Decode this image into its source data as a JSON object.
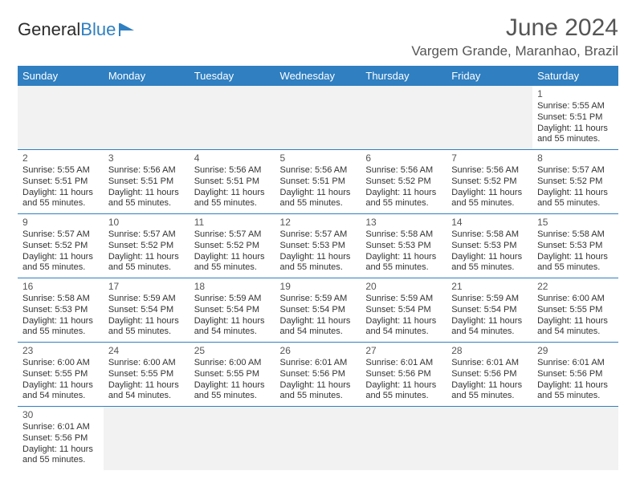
{
  "brand": {
    "part1": "General",
    "part2": "Blue"
  },
  "title": "June 2024",
  "location": "Vargem Grande, Maranhao, Brazil",
  "colors": {
    "header_bg": "#2f7fc1",
    "text": "#333333",
    "muted_bg": "#f2f2f2"
  },
  "day_headers": [
    "Sunday",
    "Monday",
    "Tuesday",
    "Wednesday",
    "Thursday",
    "Friday",
    "Saturday"
  ],
  "weeks": [
    [
      null,
      null,
      null,
      null,
      null,
      null,
      {
        "n": "1",
        "sunrise": "Sunrise: 5:55 AM",
        "sunset": "Sunset: 5:51 PM",
        "d1": "Daylight: 11 hours",
        "d2": "and 55 minutes."
      }
    ],
    [
      {
        "n": "2",
        "sunrise": "Sunrise: 5:55 AM",
        "sunset": "Sunset: 5:51 PM",
        "d1": "Daylight: 11 hours",
        "d2": "and 55 minutes."
      },
      {
        "n": "3",
        "sunrise": "Sunrise: 5:56 AM",
        "sunset": "Sunset: 5:51 PM",
        "d1": "Daylight: 11 hours",
        "d2": "and 55 minutes."
      },
      {
        "n": "4",
        "sunrise": "Sunrise: 5:56 AM",
        "sunset": "Sunset: 5:51 PM",
        "d1": "Daylight: 11 hours",
        "d2": "and 55 minutes."
      },
      {
        "n": "5",
        "sunrise": "Sunrise: 5:56 AM",
        "sunset": "Sunset: 5:51 PM",
        "d1": "Daylight: 11 hours",
        "d2": "and 55 minutes."
      },
      {
        "n": "6",
        "sunrise": "Sunrise: 5:56 AM",
        "sunset": "Sunset: 5:52 PM",
        "d1": "Daylight: 11 hours",
        "d2": "and 55 minutes."
      },
      {
        "n": "7",
        "sunrise": "Sunrise: 5:56 AM",
        "sunset": "Sunset: 5:52 PM",
        "d1": "Daylight: 11 hours",
        "d2": "and 55 minutes."
      },
      {
        "n": "8",
        "sunrise": "Sunrise: 5:57 AM",
        "sunset": "Sunset: 5:52 PM",
        "d1": "Daylight: 11 hours",
        "d2": "and 55 minutes."
      }
    ],
    [
      {
        "n": "9",
        "sunrise": "Sunrise: 5:57 AM",
        "sunset": "Sunset: 5:52 PM",
        "d1": "Daylight: 11 hours",
        "d2": "and 55 minutes."
      },
      {
        "n": "10",
        "sunrise": "Sunrise: 5:57 AM",
        "sunset": "Sunset: 5:52 PM",
        "d1": "Daylight: 11 hours",
        "d2": "and 55 minutes."
      },
      {
        "n": "11",
        "sunrise": "Sunrise: 5:57 AM",
        "sunset": "Sunset: 5:52 PM",
        "d1": "Daylight: 11 hours",
        "d2": "and 55 minutes."
      },
      {
        "n": "12",
        "sunrise": "Sunrise: 5:57 AM",
        "sunset": "Sunset: 5:53 PM",
        "d1": "Daylight: 11 hours",
        "d2": "and 55 minutes."
      },
      {
        "n": "13",
        "sunrise": "Sunrise: 5:58 AM",
        "sunset": "Sunset: 5:53 PM",
        "d1": "Daylight: 11 hours",
        "d2": "and 55 minutes."
      },
      {
        "n": "14",
        "sunrise": "Sunrise: 5:58 AM",
        "sunset": "Sunset: 5:53 PM",
        "d1": "Daylight: 11 hours",
        "d2": "and 55 minutes."
      },
      {
        "n": "15",
        "sunrise": "Sunrise: 5:58 AM",
        "sunset": "Sunset: 5:53 PM",
        "d1": "Daylight: 11 hours",
        "d2": "and 55 minutes."
      }
    ],
    [
      {
        "n": "16",
        "sunrise": "Sunrise: 5:58 AM",
        "sunset": "Sunset: 5:53 PM",
        "d1": "Daylight: 11 hours",
        "d2": "and 55 minutes."
      },
      {
        "n": "17",
        "sunrise": "Sunrise: 5:59 AM",
        "sunset": "Sunset: 5:54 PM",
        "d1": "Daylight: 11 hours",
        "d2": "and 55 minutes."
      },
      {
        "n": "18",
        "sunrise": "Sunrise: 5:59 AM",
        "sunset": "Sunset: 5:54 PM",
        "d1": "Daylight: 11 hours",
        "d2": "and 54 minutes."
      },
      {
        "n": "19",
        "sunrise": "Sunrise: 5:59 AM",
        "sunset": "Sunset: 5:54 PM",
        "d1": "Daylight: 11 hours",
        "d2": "and 54 minutes."
      },
      {
        "n": "20",
        "sunrise": "Sunrise: 5:59 AM",
        "sunset": "Sunset: 5:54 PM",
        "d1": "Daylight: 11 hours",
        "d2": "and 54 minutes."
      },
      {
        "n": "21",
        "sunrise": "Sunrise: 5:59 AM",
        "sunset": "Sunset: 5:54 PM",
        "d1": "Daylight: 11 hours",
        "d2": "and 54 minutes."
      },
      {
        "n": "22",
        "sunrise": "Sunrise: 6:00 AM",
        "sunset": "Sunset: 5:55 PM",
        "d1": "Daylight: 11 hours",
        "d2": "and 54 minutes."
      }
    ],
    [
      {
        "n": "23",
        "sunrise": "Sunrise: 6:00 AM",
        "sunset": "Sunset: 5:55 PM",
        "d1": "Daylight: 11 hours",
        "d2": "and 54 minutes."
      },
      {
        "n": "24",
        "sunrise": "Sunrise: 6:00 AM",
        "sunset": "Sunset: 5:55 PM",
        "d1": "Daylight: 11 hours",
        "d2": "and 54 minutes."
      },
      {
        "n": "25",
        "sunrise": "Sunrise: 6:00 AM",
        "sunset": "Sunset: 5:55 PM",
        "d1": "Daylight: 11 hours",
        "d2": "and 55 minutes."
      },
      {
        "n": "26",
        "sunrise": "Sunrise: 6:01 AM",
        "sunset": "Sunset: 5:56 PM",
        "d1": "Daylight: 11 hours",
        "d2": "and 55 minutes."
      },
      {
        "n": "27",
        "sunrise": "Sunrise: 6:01 AM",
        "sunset": "Sunset: 5:56 PM",
        "d1": "Daylight: 11 hours",
        "d2": "and 55 minutes."
      },
      {
        "n": "28",
        "sunrise": "Sunrise: 6:01 AM",
        "sunset": "Sunset: 5:56 PM",
        "d1": "Daylight: 11 hours",
        "d2": "and 55 minutes."
      },
      {
        "n": "29",
        "sunrise": "Sunrise: 6:01 AM",
        "sunset": "Sunset: 5:56 PM",
        "d1": "Daylight: 11 hours",
        "d2": "and 55 minutes."
      }
    ],
    [
      {
        "n": "30",
        "sunrise": "Sunrise: 6:01 AM",
        "sunset": "Sunset: 5:56 PM",
        "d1": "Daylight: 11 hours",
        "d2": "and 55 minutes."
      },
      null,
      null,
      null,
      null,
      null,
      null
    ]
  ]
}
